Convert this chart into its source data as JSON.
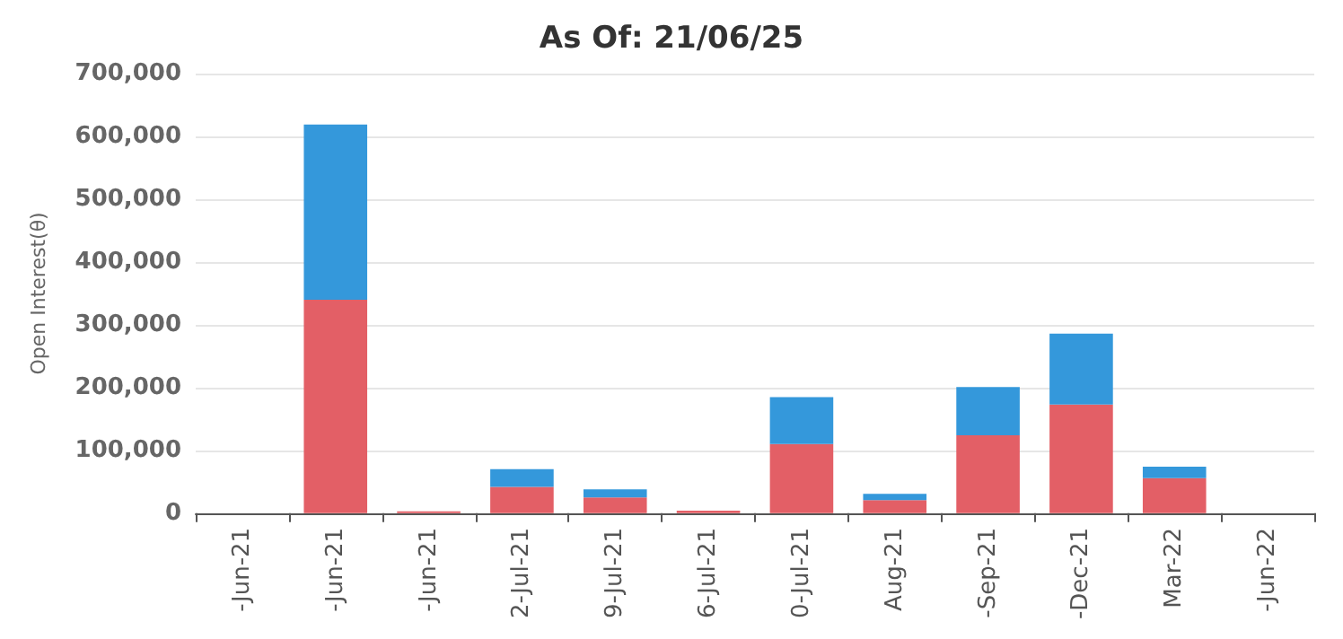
{
  "chart_data": {
    "type": "bar",
    "title": "As Of: 21/06/25",
    "ylabel": "Open Interest(θ)",
    "stacked": true,
    "legend": false,
    "grid": "y",
    "categories": [
      "-Jun-21",
      "-Jun-21",
      "-Jun-21",
      "2-Jul-21",
      "9-Jul-21",
      "6-Jul-21",
      "0-Jul-21",
      "Aug-21",
      "-Sep-21",
      "-Dec-21",
      "Mar-22",
      "-Jun-22"
    ],
    "series": [
      {
        "color": "#e35f66",
        "values": [
          0,
          340000,
          3000,
          42000,
          25000,
          4000,
          110000,
          21000,
          124000,
          173000,
          56000,
          0
        ]
      },
      {
        "color": "#3498db",
        "values": [
          0,
          279000,
          0,
          28000,
          13000,
          0,
          75000,
          10000,
          77000,
          113000,
          18000,
          0
        ]
      }
    ],
    "ylim": [
      0,
      700000
    ],
    "yticks": [
      0,
      {
        "value": 100000,
        "label": "100,000"
      },
      {
        "value": 200000,
        "label": "200,000"
      },
      {
        "value": 300000,
        "label": "300,000"
      },
      {
        "value": 400000,
        "label": "400,000"
      },
      {
        "value": 500000,
        "label": "500,000"
      },
      {
        "value": 600000,
        "label": "600,000"
      },
      {
        "value": 700000,
        "label": "700,000"
      }
    ]
  }
}
